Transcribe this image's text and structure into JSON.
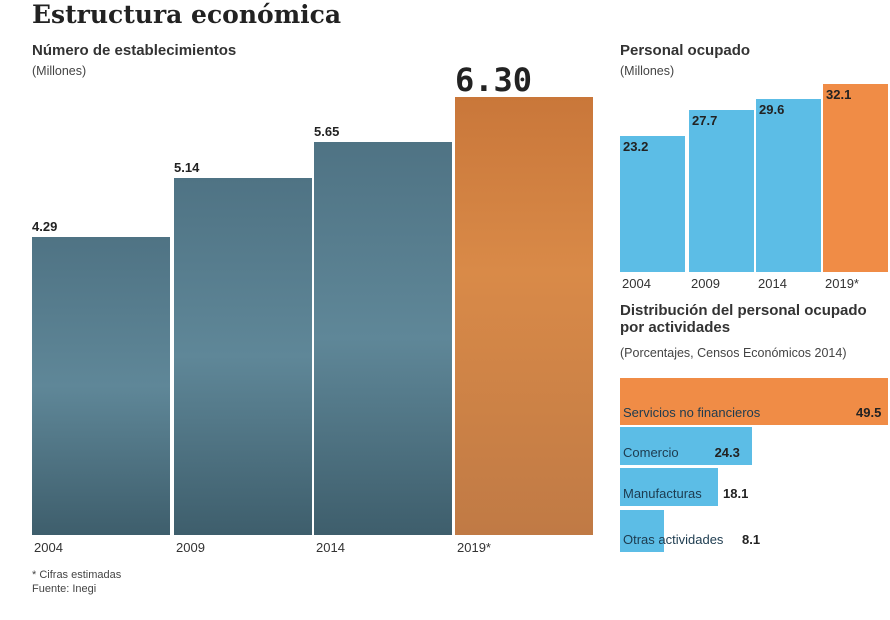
{
  "title": "Estructura económica",
  "footnote": "* Cifras estimadas",
  "source": "Fuente: Inegi",
  "colors": {
    "estab": "#5f8798",
    "estab_highlight": "#d98a48",
    "blue": "#5cbde6",
    "orange": "#f08c46"
  },
  "chart_data": [
    {
      "type": "bar",
      "title": "Número de establecimientos",
      "subtitle": "(Millones)",
      "categories": [
        "2004",
        "2009",
        "2014",
        "2019*"
      ],
      "values": [
        4.29,
        5.14,
        5.65,
        6.3
      ],
      "labels": [
        "4.29",
        "5.14",
        "5.65",
        "6.30"
      ],
      "ylim": [
        0,
        6.3
      ]
    },
    {
      "type": "bar",
      "title": "Personal ocupado",
      "subtitle": "(Millones)",
      "categories": [
        "2004",
        "2009",
        "2014",
        "2019*"
      ],
      "values": [
        23.2,
        27.7,
        29.6,
        32.1
      ],
      "labels": [
        "23.2",
        "27.7",
        "29.6",
        "32.1"
      ],
      "ylim": [
        0,
        32.1
      ]
    },
    {
      "type": "bar",
      "orientation": "horizontal",
      "title": "Distribución del personal ocupado por actividades",
      "subtitle": "(Porcentajes, Censos Económicos 2014)",
      "categories": [
        "Servicios no financieros",
        "Comercio",
        "Manufacturas",
        "Otras actividades"
      ],
      "values": [
        49.5,
        24.3,
        18.1,
        8.1
      ],
      "labels": [
        "49.5",
        "24.3",
        "18.1",
        "8.1"
      ],
      "xlim": [
        0,
        49.5
      ]
    }
  ]
}
